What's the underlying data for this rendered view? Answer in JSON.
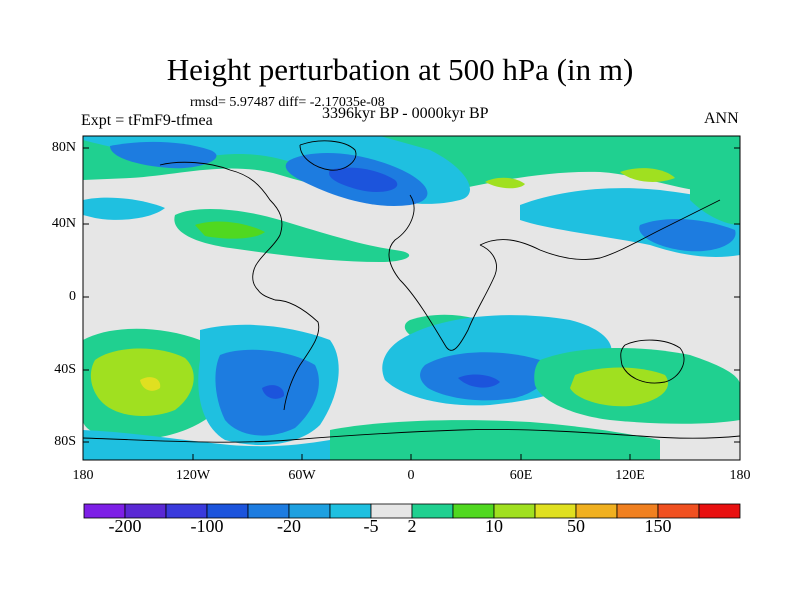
{
  "title": "Height perturbation at 500 hPa (in m)",
  "stats_text": "rmsd= 5.97487 diff= -2.17035e-08",
  "left_label": "Expt = tFmF9-tfmea",
  "center_label": "3396kyr BP - 0000kyr BP",
  "right_label": "ANN",
  "lat_labels": [
    "80N",
    "40N",
    "0",
    "40S",
    "80S"
  ],
  "lon_labels": [
    "180",
    "120W",
    "60W",
    "0",
    "60E",
    "120E",
    "180"
  ],
  "colorbar": {
    "colors": [
      "#7d1fe6",
      "#5a28d4",
      "#3a3adc",
      "#1c54dc",
      "#1d7ce0",
      "#1ea0e0",
      "#1fc0e0",
      "#e6e6e6",
      "#20d090",
      "#50d820",
      "#a0e020",
      "#e0e020",
      "#f0b020",
      "#f08020",
      "#f05020",
      "#e81010"
    ],
    "labels": [
      "-200",
      "-100",
      "-20",
      "-5",
      "2",
      "10",
      "50",
      "150"
    ]
  },
  "palette": {
    "neutral": "#e6e6e6",
    "light_blue": "#1fc0e0",
    "mid_blue": "#1d7ce0",
    "deep_blue": "#1c54dc",
    "green_light": "#20d090",
    "green": "#50d820",
    "yellow_green": "#a0e020",
    "yellow": "#e0e020",
    "orange": "#f08020"
  }
}
